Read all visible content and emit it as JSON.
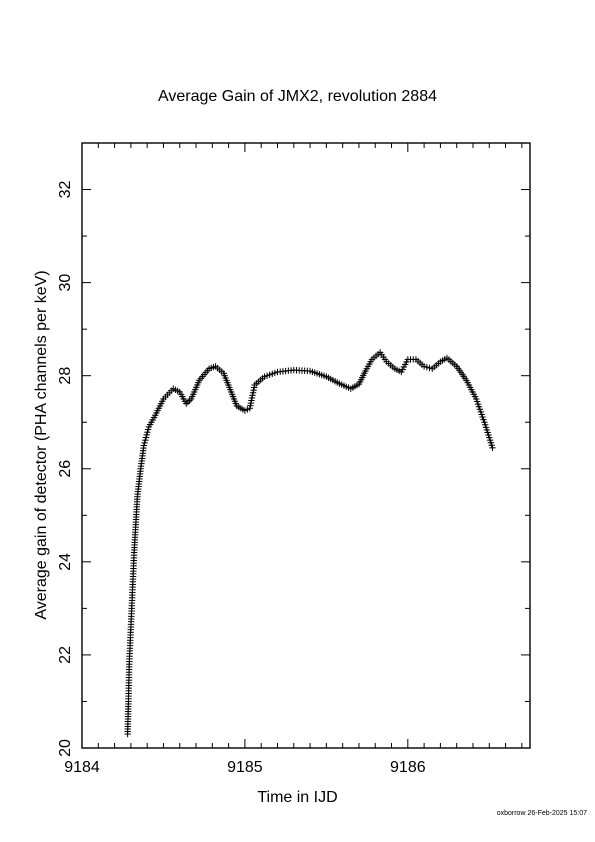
{
  "chart_data": {
    "type": "scatter",
    "title": "Average Gain of JMX2, revolution 2884",
    "xlabel": "Time in IJD",
    "ylabel": "Average gain of detector (PHA channels per keV)",
    "xlim": [
      9184,
      9186.75
    ],
    "ylim": [
      20,
      33
    ],
    "x_ticks": [
      "9184",
      "9185",
      "9186"
    ],
    "y_ticks": [
      "20",
      "22",
      "24",
      "26",
      "28",
      "30",
      "32"
    ],
    "marker": "+",
    "grid": false,
    "legend": "none",
    "series": [
      {
        "points": [
          [
            9184.28,
            20.3
          ],
          [
            9184.285,
            21.0
          ],
          [
            9184.29,
            21.8
          ],
          [
            9184.3,
            22.6
          ],
          [
            9184.31,
            23.4
          ],
          [
            9184.32,
            24.2
          ],
          [
            9184.33,
            24.8
          ],
          [
            9184.34,
            25.4
          ],
          [
            9184.36,
            26.0
          ],
          [
            9184.38,
            26.5
          ],
          [
            9184.41,
            26.9
          ],
          [
            9184.45,
            27.15
          ],
          [
            9184.5,
            27.5
          ],
          [
            9184.56,
            27.72
          ],
          [
            9184.6,
            27.65
          ],
          [
            9184.64,
            27.4
          ],
          [
            9184.67,
            27.5
          ],
          [
            9184.72,
            27.9
          ],
          [
            9184.78,
            28.15
          ],
          [
            9184.82,
            28.2
          ],
          [
            9184.87,
            28.05
          ],
          [
            9184.91,
            27.7
          ],
          [
            9184.95,
            27.35
          ],
          [
            9185.0,
            27.25
          ],
          [
            9185.03,
            27.3
          ],
          [
            9185.06,
            27.8
          ],
          [
            9185.12,
            27.98
          ],
          [
            9185.2,
            28.08
          ],
          [
            9185.3,
            28.12
          ],
          [
            9185.4,
            28.1
          ],
          [
            9185.5,
            27.98
          ],
          [
            9185.58,
            27.83
          ],
          [
            9185.65,
            27.72
          ],
          [
            9185.7,
            27.82
          ],
          [
            9185.74,
            28.1
          ],
          [
            9185.78,
            28.35
          ],
          [
            9185.83,
            28.5
          ],
          [
            9185.87,
            28.3
          ],
          [
            9185.92,
            28.15
          ],
          [
            9185.96,
            28.08
          ],
          [
            9186.0,
            28.35
          ],
          [
            9186.05,
            28.35
          ],
          [
            9186.1,
            28.2
          ],
          [
            9186.15,
            28.15
          ],
          [
            9186.2,
            28.3
          ],
          [
            9186.24,
            28.38
          ],
          [
            9186.3,
            28.2
          ],
          [
            9186.36,
            27.9
          ],
          [
            9186.42,
            27.5
          ],
          [
            9186.47,
            27.0
          ],
          [
            9186.52,
            26.45
          ]
        ]
      }
    ]
  },
  "footer": "oxborrow 26-Feb-2025 15:07"
}
